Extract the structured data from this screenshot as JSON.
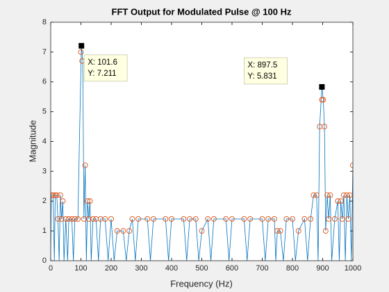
{
  "chart_data": {
    "type": "line",
    "title": "FFT Output for Modulated Pulse @ 100 Hz",
    "xlabel": "Frequency (Hz)",
    "ylabel": "Magnitude",
    "xlim": [
      0,
      1000
    ],
    "xticks": [
      0,
      100,
      200,
      300,
      400,
      500,
      600,
      700,
      800,
      900,
      1000
    ],
    "ylim": [
      0,
      8
    ],
    "yticks": [
      0,
      1,
      2,
      3,
      4,
      5,
      6,
      7,
      8
    ],
    "series": [
      {
        "color": "#0072bd",
        "marker": "none",
        "x": [
          0,
          2,
          8,
          12,
          15,
          20,
          24,
          28,
          32,
          36,
          40,
          44,
          50,
          56,
          60,
          70,
          75,
          80,
          90,
          96,
          101.6,
          106,
          110,
          114,
          118,
          122,
          126,
          130,
          134,
          140,
          150,
          158,
          165,
          180,
          190,
          200,
          210,
          220,
          240,
          250,
          260,
          270,
          280,
          290,
          320,
          330,
          340,
          380,
          390,
          400,
          440,
          450,
          460,
          480,
          490,
          500,
          520,
          530,
          540,
          580,
          590,
          600,
          640,
          650,
          660,
          700,
          710,
          720,
          740,
          745,
          750,
          760,
          770,
          780,
          800,
          810,
          820,
          840,
          850,
          860,
          870,
          880,
          885,
          890,
          897.5,
          902,
          906,
          910,
          915,
          920,
          925,
          930,
          940,
          950,
          955,
          960,
          965,
          970,
          975,
          980,
          985,
          990,
          995,
          1000
        ],
        "values": [
          0,
          2.2,
          2.2,
          0,
          2.2,
          2.2,
          1.4,
          0,
          2.2,
          1.4,
          2,
          0,
          1.4,
          0,
          1.4,
          1.4,
          0,
          1.4,
          1.4,
          4.5,
          7.211,
          6.7,
          1.4,
          3.2,
          0,
          2,
          1.4,
          2,
          0,
          1.4,
          1.4,
          0,
          1.4,
          1.4,
          0,
          1.4,
          0,
          1,
          1,
          0,
          1,
          1.4,
          0,
          1.4,
          1.4,
          0,
          1.4,
          1.4,
          0,
          1.4,
          1.4,
          0,
          1.4,
          1.4,
          0,
          1,
          1.4,
          0,
          1.4,
          1.4,
          0,
          1.4,
          1.4,
          0,
          1.4,
          1.4,
          0,
          1.4,
          1.4,
          0,
          1,
          1,
          0,
          1.4,
          1.4,
          0,
          1,
          1.4,
          0,
          1.4,
          2.2,
          2.2,
          0,
          4.5,
          5.831,
          5.4,
          4.5,
          1,
          2.2,
          1.4,
          2.2,
          0,
          1.4,
          2,
          0,
          2,
          1.4,
          2.2,
          0,
          2.2,
          1.4,
          2.2,
          0,
          3.2
        ]
      },
      {
        "color": "#d95319",
        "marker": "o",
        "x": [
          2,
          8,
          15,
          20,
          24,
          32,
          36,
          40,
          50,
          60,
          70,
          80,
          90,
          100,
          104,
          110,
          114,
          122,
          126,
          130,
          140,
          150,
          165,
          180,
          200,
          220,
          240,
          260,
          270,
          290,
          320,
          340,
          380,
          400,
          440,
          460,
          480,
          500,
          520,
          540,
          580,
          600,
          640,
          660,
          700,
          720,
          740,
          750,
          760,
          780,
          800,
          820,
          840,
          860,
          870,
          880,
          890,
          897.5,
          902,
          906,
          910,
          915,
          920,
          925,
          940,
          950,
          960,
          965,
          970,
          980,
          985,
          990,
          1000
        ],
        "values": [
          2.2,
          2.2,
          2.2,
          2.2,
          1.4,
          2.2,
          1.4,
          2,
          1.4,
          1.4,
          1.4,
          1.4,
          1.4,
          7,
          6.7,
          1.4,
          3.2,
          2,
          1.4,
          2,
          1.4,
          1.4,
          1.4,
          1.4,
          1.4,
          1,
          1,
          1,
          1.4,
          1.4,
          1.4,
          1.4,
          1.4,
          1.4,
          1.4,
          1.4,
          1.4,
          1,
          1.4,
          1.4,
          1.4,
          1.4,
          1.4,
          1.4,
          1.4,
          1.4,
          1.4,
          1,
          1,
          1.4,
          1.4,
          1,
          1.4,
          1.4,
          2.2,
          2.2,
          4.5,
          5.4,
          5.4,
          4.5,
          1,
          2.2,
          1.4,
          2.2,
          1.4,
          2,
          2,
          1.4,
          2.2,
          2.2,
          1.4,
          2.2,
          3.2
        ]
      }
    ],
    "datatips": [
      {
        "x": 101.6,
        "y": 7.211,
        "label_x": "X: 101.6",
        "label_y": "Y: 7.211"
      },
      {
        "x": 897.5,
        "y": 5.831,
        "label_x": "X: 897.5",
        "label_y": "Y: 5.831"
      }
    ]
  }
}
